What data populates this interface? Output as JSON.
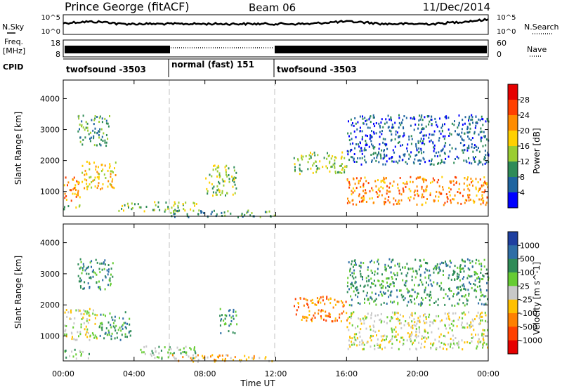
{
  "header": {
    "station": "Prince George (fitACF)",
    "beam": "Beam 06",
    "date": "11/Dec/2014"
  },
  "sky_panel": {
    "left_label": "N.Sky",
    "right_label": "N.Search",
    "left_ticks": [
      "10^5",
      "10^0"
    ],
    "right_ticks": [
      "10^5",
      "10^0"
    ]
  },
  "freq_panel": {
    "left_label_1": "Freq.",
    "left_label_2": "[MHz]",
    "right_label": "Nave",
    "left_ticks": [
      "18",
      "8"
    ],
    "right_ticks": [
      "60",
      "0"
    ]
  },
  "cpid_panel": {
    "label": "CPID",
    "segments": [
      {
        "label": "twofsound -3503",
        "start_hour": 0,
        "end_hour": 6
      },
      {
        "label": "normal (fast) 151",
        "start_hour": 6,
        "end_hour": 12
      },
      {
        "label": "twofsound -3503",
        "start_hour": 12,
        "end_hour": 24
      }
    ]
  },
  "power_colorbar": {
    "title": "Power [dB]",
    "ticks": [
      "28",
      "24",
      "20",
      "16",
      "12",
      "8",
      "4"
    ],
    "colors": [
      "#e60000",
      "#ff4000",
      "#ff8c00",
      "#ffd000",
      "#9acd32",
      "#2e8b57",
      "#1e64a0",
      "#0000ff"
    ]
  },
  "velocity_colorbar": {
    "title": "Velocity [m s^-1]",
    "ticks": [
      "1000",
      "500",
      "100",
      "25",
      "-25",
      "-100",
      "-500",
      "-1000"
    ],
    "colors": [
      "#1e3fa0",
      "#2e6ea6",
      "#2e8b57",
      "#66cc33",
      "#c8c8c8",
      "#ffc000",
      "#ff8000",
      "#ff4000",
      "#e60000"
    ]
  },
  "x_axis": {
    "title": "Time UT",
    "ticks": [
      "00:00",
      "04:00",
      "08:00",
      "12:00",
      "16:00",
      "20:00",
      "00:00"
    ]
  },
  "chart_data": [
    {
      "type": "heatmap",
      "name": "Power",
      "ylabel": "Slant Range [km]",
      "xlabel": "",
      "x_unit": "hours UT",
      "xlim": [
        0,
        24
      ],
      "ylim": [
        200,
        4600
      ],
      "yticks": [
        1000,
        2000,
        3000,
        4000
      ],
      "grid": false,
      "dashed_vlines": [
        6,
        12
      ],
      "features": [
        {
          "t0": 0.0,
          "t1": 1.0,
          "r0": 700,
          "r1": 1500,
          "level": 5
        },
        {
          "t0": 1.0,
          "t1": 3.0,
          "r0": 1100,
          "r1": 2000,
          "level": 4
        },
        {
          "t0": 0.8,
          "t1": 2.6,
          "r0": 2500,
          "r1": 3500,
          "level": 2
        },
        {
          "t0": 0.0,
          "t1": 1.2,
          "r0": 450,
          "r1": 600,
          "level": 3
        },
        {
          "t0": 3.0,
          "t1": 4.5,
          "r0": 400,
          "r1": 650,
          "level": 3
        },
        {
          "t0": 4.5,
          "t1": 7.5,
          "r0": 380,
          "r1": 700,
          "level": 3
        },
        {
          "t0": 8.0,
          "t1": 9.8,
          "r0": 900,
          "r1": 1900,
          "level": 3
        },
        {
          "t0": 6.0,
          "t1": 12.0,
          "r0": 200,
          "r1": 420,
          "level": 2
        },
        {
          "t0": 13.0,
          "t1": 16.0,
          "r0": 1600,
          "r1": 2300,
          "level": 3
        },
        {
          "t0": 16.0,
          "t1": 24.0,
          "r0": 600,
          "r1": 1500,
          "level": 5
        },
        {
          "t0": 16.0,
          "t1": 24.0,
          "r0": 1900,
          "r1": 3500,
          "level": 1
        }
      ]
    },
    {
      "type": "heatmap",
      "name": "Velocity",
      "ylabel": "Slant Range [km]",
      "xlabel": "Time UT",
      "x_unit": "hours UT",
      "xlim": [
        0,
        24
      ],
      "ylim": [
        200,
        4600
      ],
      "yticks": [
        1000,
        2000,
        3000,
        4000
      ],
      "grid": false,
      "dashed_vlines": [
        6,
        12
      ],
      "features": [
        {
          "t0": 0.0,
          "t1": 2.0,
          "r0": 900,
          "r1": 1900,
          "level": 4
        },
        {
          "t0": 2.0,
          "t1": 3.8,
          "r0": 900,
          "r1": 1800,
          "level": 6
        },
        {
          "t0": 0.8,
          "t1": 2.8,
          "r0": 2500,
          "r1": 3500,
          "level": 6
        },
        {
          "t0": 0.0,
          "t1": 1.5,
          "r0": 300,
          "r1": 600,
          "level": 5
        },
        {
          "t0": 4.2,
          "t1": 7.5,
          "r0": 300,
          "r1": 700,
          "level": 5
        },
        {
          "t0": 8.8,
          "t1": 9.8,
          "r0": 1100,
          "r1": 1900,
          "level": 6
        },
        {
          "t0": 6.0,
          "t1": 12.0,
          "r0": 200,
          "r1": 420,
          "level": 3
        },
        {
          "t0": 13.0,
          "t1": 16.0,
          "r0": 1500,
          "r1": 2300,
          "level": 2
        },
        {
          "t0": 16.0,
          "t1": 24.0,
          "r0": 600,
          "r1": 1800,
          "level": 4
        },
        {
          "t0": 16.0,
          "t1": 24.0,
          "r0": 2000,
          "r1": 3500,
          "level": 6
        }
      ]
    }
  ]
}
